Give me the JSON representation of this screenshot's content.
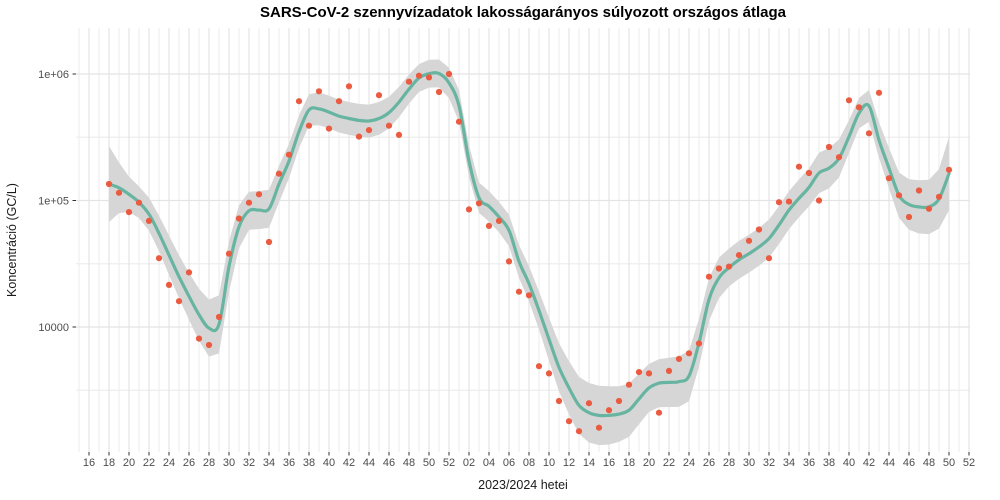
{
  "title": "SARS-CoV-2 szennyvízadatok lakosságarányos súlyozott országos átlaga",
  "axes": {
    "x_label": "2023/2024 hetei",
    "y_label": "Koncentráció (GC/L)",
    "y_tick_labels": [
      "1e+06",
      "1e+05",
      "10000"
    ],
    "y_tick_values": [
      1000000,
      100000,
      10000
    ],
    "x_tick_labels": [
      "16",
      "18",
      "20",
      "22",
      "24",
      "26",
      "28",
      "30",
      "32",
      "34",
      "36",
      "38",
      "40",
      "42",
      "44",
      "46",
      "48",
      "50",
      "52",
      "02",
      "04",
      "06",
      "08",
      "10",
      "12",
      "14",
      "16",
      "18",
      "20",
      "22",
      "24",
      "26",
      "28",
      "30",
      "32",
      "34",
      "36",
      "38",
      "40",
      "42",
      "44",
      "46",
      "48",
      "50",
      "52"
    ]
  },
  "chart_data": {
    "type": "scatter",
    "description": "Weekly wastewater SARS-CoV-2 concentration, red points = weekly measured national weighted average, teal line = smoothed trend with grey confidence ribbon",
    "y_scale": "log10",
    "ylim": [
      1100,
      2300000
    ],
    "x_axis_weeks": "2023-W16 to 2024-W52, labels every 2 weeks, gridline every week",
    "first_data_week": {
      "year": 2023,
      "week": 18
    },
    "last_data_week": {
      "year": 2024,
      "week": 50
    },
    "points_gcl": [
      135000,
      115000,
      81000,
      96000,
      69000,
      35000,
      21500,
      16000,
      27000,
      8100,
      7200,
      12000,
      38000,
      72000,
      96000,
      112000,
      47000,
      163000,
      230000,
      610000,
      390000,
      730000,
      370000,
      610000,
      800000,
      320000,
      360000,
      680000,
      390000,
      330000,
      870000,
      970000,
      940000,
      720000,
      1000000,
      420000,
      85000,
      95000,
      63000,
      69000,
      33000,
      19000,
      17800,
      4900,
      4300,
      2600,
      1800,
      1500,
      2500,
      1600,
      2200,
      2600,
      3500,
      4400,
      4300,
      2100,
      4500,
      5600,
      6200,
      7400,
      25000,
      29000,
      30000,
      37000,
      48000,
      59000,
      35000,
      97000,
      98000,
      185000,
      165000,
      100000,
      265000,
      220000,
      620000,
      545000,
      340000,
      710000,
      150000,
      110000,
      74000,
      120000,
      86000,
      107000,
      175000
    ],
    "smooth_gcl": [
      135000,
      126000,
      112000,
      97000,
      78000,
      55000,
      37000,
      25000,
      17500,
      12500,
      9800,
      10500,
      30000,
      62000,
      83000,
      84000,
      86000,
      135000,
      205000,
      350000,
      520000,
      530000,
      500000,
      465000,
      445000,
      430000,
      425000,
      445000,
      495000,
      600000,
      760000,
      930000,
      1005000,
      1010000,
      850000,
      560000,
      205000,
      105000,
      90000,
      74000,
      58000,
      33000,
      22000,
      13500,
      8000,
      4800,
      3300,
      2400,
      2100,
      2000,
      2000,
      2050,
      2200,
      2700,
      3300,
      3600,
      3650,
      3700,
      4100,
      7500,
      16500,
      24500,
      29500,
      34000,
      38000,
      43000,
      50000,
      64000,
      84000,
      104000,
      127000,
      165000,
      180000,
      215000,
      320000,
      490000,
      560000,
      300000,
      180000,
      110000,
      93000,
      89000,
      89000,
      103000,
      163000
    ],
    "smooth_ci_halfwidth_log10": [
      0.3,
      0.2,
      0.14,
      0.125,
      0.13,
      0.14,
      0.155,
      0.17,
      0.185,
      0.205,
      0.225,
      0.23,
      0.2,
      0.17,
      0.15,
      0.15,
      0.15,
      0.145,
      0.135,
      0.13,
      0.125,
      0.13,
      0.13,
      0.13,
      0.13,
      0.13,
      0.13,
      0.13,
      0.125,
      0.12,
      0.115,
      0.11,
      0.11,
      0.11,
      0.12,
      0.125,
      0.125,
      0.12,
      0.12,
      0.12,
      0.125,
      0.13,
      0.14,
      0.15,
      0.17,
      0.19,
      0.21,
      0.225,
      0.235,
      0.235,
      0.23,
      0.22,
      0.21,
      0.2,
      0.19,
      0.19,
      0.195,
      0.2,
      0.2,
      0.19,
      0.17,
      0.16,
      0.15,
      0.15,
      0.15,
      0.15,
      0.15,
      0.15,
      0.15,
      0.15,
      0.15,
      0.16,
      0.16,
      0.15,
      0.13,
      0.12,
      0.125,
      0.14,
      0.16,
      0.18,
      0.2,
      0.21,
      0.215,
      0.235,
      0.29
    ],
    "legend": "none",
    "grid": "on"
  },
  "style": {
    "point_color": "#ea5b41",
    "line_color": "#67b4a1",
    "ribbon_color": "#d6d6d6",
    "grid_major_color": "#e4e4e4",
    "grid_minor_color": "#eeeeee",
    "tick_mark_color": "#333333",
    "tick_text_color": "#4d4d4d",
    "background": "#ffffff"
  }
}
